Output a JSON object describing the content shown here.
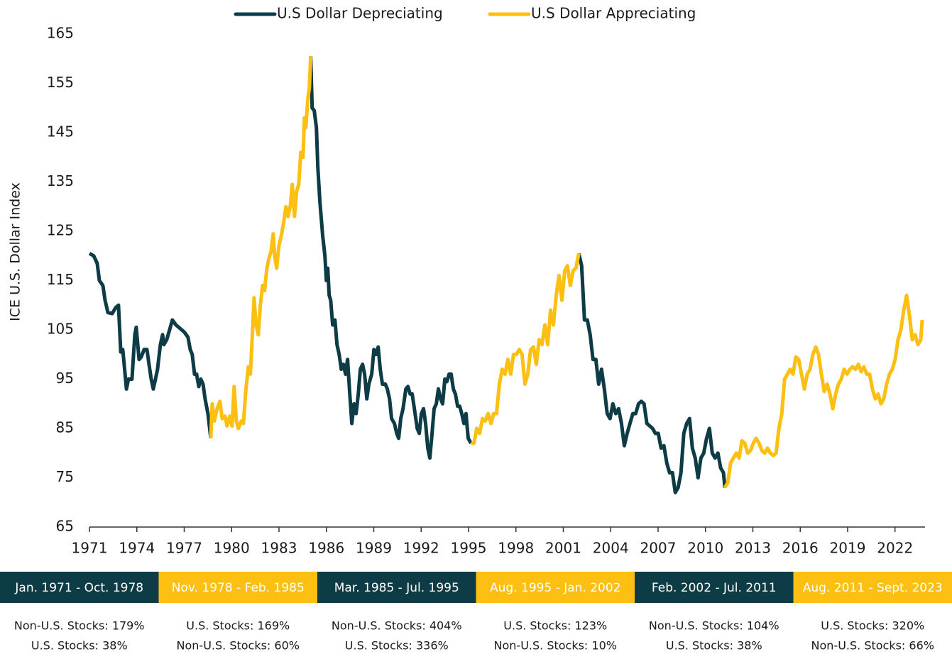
{
  "chart_data": {
    "type": "line",
    "y_label": "ICE U.S. Dollar Index",
    "xlim": [
      1971,
      2023.9
    ],
    "ylim": [
      65,
      165
    ],
    "xticks": [
      1971,
      1974,
      1977,
      1980,
      1983,
      1986,
      1989,
      1992,
      1995,
      1998,
      2001,
      2004,
      2007,
      2010,
      2013,
      2016,
      2019,
      2022
    ],
    "yticks": [
      65,
      75,
      85,
      95,
      105,
      115,
      125,
      135,
      145,
      155,
      165
    ],
    "legend": "top",
    "series": [
      {
        "name": "U.S Dollar Depreciating",
        "color": "#0d3b46",
        "x": [
          1971.0,
          1971.27,
          1971.49,
          1971.63,
          1971.85,
          1971.99,
          1972.17,
          1972.44,
          1972.66,
          1972.84,
          1972.98,
          1973.11,
          1973.2,
          1973.34,
          1973.47,
          1973.69,
          1973.87,
          1973.96,
          1974.14,
          1974.28,
          1974.46,
          1974.64,
          1974.77,
          1974.91,
          1975.04,
          1975.18,
          1975.31,
          1975.49,
          1975.63,
          1975.71,
          1975.89,
          1976.12,
          1976.25,
          1976.48,
          1976.66,
          1976.84,
          1977.02,
          1977.24,
          1977.38,
          1977.51,
          1977.65,
          1977.78,
          1977.92,
          1978.05,
          1978.19,
          1978.32,
          1978.5,
          1978.68,
          null,
          1985.01,
          1985.1,
          1985.23,
          1985.37,
          1985.46,
          1985.59,
          1985.77,
          1985.91,
          1986.0,
          1986.09,
          1986.18,
          1986.27,
          1986.4,
          1986.54,
          1986.67,
          1986.81,
          1986.94,
          1987.08,
          1987.21,
          1987.34,
          1987.48,
          1987.61,
          1987.75,
          1987.88,
          1988.02,
          1988.15,
          1988.29,
          1988.42,
          1988.56,
          1988.69,
          1988.87,
          1989.01,
          1989.14,
          1989.28,
          1989.41,
          1989.55,
          1989.73,
          1989.86,
          1990.0,
          1990.13,
          1990.31,
          1990.45,
          1990.58,
          1990.71,
          1990.85,
          1991.03,
          1991.16,
          1991.3,
          1991.43,
          1991.57,
          1991.75,
          1991.88,
          1992.01,
          1992.15,
          1992.28,
          1992.42,
          1992.55,
          1992.69,
          1992.82,
          1992.96,
          1993.09,
          1993.23,
          1993.36,
          1993.5,
          1993.63,
          1993.77,
          1993.9,
          1994.04,
          1994.17,
          1994.31,
          1994.44,
          1994.57,
          1994.71,
          1994.84,
          1994.98,
          1995.16,
          null,
          2001.98,
          2002.16,
          2002.34,
          2002.52,
          2002.7,
          2002.88,
          2003.06,
          2003.24,
          2003.42,
          2003.6,
          2003.78,
          2003.96,
          2004.14,
          2004.32,
          2004.5,
          2004.68,
          2004.86,
          2005.04,
          2005.22,
          2005.4,
          2005.58,
          2005.76,
          2005.94,
          2006.11,
          2006.29,
          2006.47,
          2006.65,
          2006.83,
          2007.01,
          2007.19,
          2007.37,
          2007.55,
          2007.73,
          2007.91,
          2008.09,
          2008.27,
          2008.45,
          2008.63,
          2008.81,
          2008.99,
          2009.17,
          2009.35,
          2009.53,
          2009.71,
          2009.89,
          2010.07,
          2010.25,
          2010.43,
          2010.61,
          2010.79,
          2010.96,
          2011.14,
          2011.23
        ],
        "values": [
          120.5,
          120,
          118.5,
          115,
          114,
          111,
          108.5,
          108.3,
          109.5,
          110,
          100.5,
          101,
          98,
          93,
          95,
          95,
          104,
          105.5,
          99,
          99.5,
          101,
          101,
          98,
          95,
          93,
          95,
          97,
          102,
          104,
          102,
          103,
          105.5,
          107,
          106,
          105.5,
          105,
          104.5,
          103.5,
          101,
          100,
          96,
          96,
          93.5,
          95,
          94,
          91,
          88,
          83,
          null,
          160.5,
          150,
          149.5,
          146,
          138,
          131,
          124,
          120,
          115,
          117.5,
          112,
          111,
          106,
          107,
          102,
          100,
          97,
          98,
          96,
          99,
          92,
          86,
          90,
          88,
          92,
          97,
          98,
          96,
          91,
          94,
          96,
          101,
          100,
          101.5,
          97,
          94,
          94,
          93,
          91,
          87,
          86,
          84,
          83,
          87,
          89,
          93,
          93.5,
          92,
          92,
          89,
          85,
          84,
          88,
          89,
          86,
          81,
          79,
          84,
          89,
          90,
          93,
          91,
          90,
          95,
          94.5,
          96,
          96,
          93,
          92,
          89.5,
          89.5,
          88,
          86,
          88,
          83,
          82,
          null,
          120.5,
          118,
          107,
          107,
          104,
          99,
          99,
          94,
          97,
          93,
          88,
          87,
          90,
          88,
          89,
          86,
          81.5,
          84,
          86,
          88,
          88,
          90,
          90.5,
          90,
          86,
          85.5,
          85,
          84,
          84,
          81,
          81.5,
          78,
          76,
          76,
          72,
          73,
          76,
          84,
          86,
          87,
          81,
          79,
          75,
          79,
          80,
          83,
          85,
          80,
          79,
          80,
          77,
          76,
          73
        ]
      },
      {
        "name": "U.S Dollar Appreciating",
        "color": "#fcbf12",
        "x": [
          1978.68,
          1978.77,
          1978.9,
          1979.08,
          1979.26,
          1979.4,
          1979.58,
          1979.71,
          1979.89,
          1980.03,
          1980.16,
          1980.3,
          1980.43,
          1980.61,
          1980.75,
          1980.88,
          1981.06,
          1981.19,
          1981.33,
          1981.42,
          1981.55,
          1981.69,
          1981.82,
          1981.96,
          1982.09,
          1982.23,
          1982.36,
          1982.5,
          1982.63,
          1982.72,
          1982.85,
          1982.99,
          1983.17,
          1983.3,
          1983.44,
          1983.57,
          1983.71,
          1983.84,
          1983.98,
          1984.11,
          1984.25,
          1984.38,
          1984.52,
          1984.61,
          1984.7,
          1984.83,
          1984.92,
          1985.01,
          null,
          1995.16,
          1995.34,
          1995.52,
          1995.7,
          1995.88,
          1996.06,
          1996.24,
          1996.42,
          1996.59,
          1996.77,
          1996.95,
          1997.13,
          1997.31,
          1997.49,
          1997.67,
          1997.85,
          1998.03,
          1998.21,
          1998.39,
          1998.57,
          1998.75,
          1998.93,
          1999.11,
          1999.29,
          1999.47,
          1999.65,
          1999.83,
          2000.01,
          2000.19,
          2000.37,
          2000.55,
          2000.73,
          2000.91,
          2001.09,
          2001.26,
          2001.44,
          2001.62,
          2001.8,
          2001.98,
          null,
          2011.23,
          2011.41,
          2011.59,
          2011.77,
          2011.95,
          2012.13,
          2012.31,
          2012.49,
          2012.67,
          2012.85,
          2013.03,
          2013.21,
          2013.39,
          2013.57,
          2013.75,
          2013.93,
          2014.11,
          2014.29,
          2014.47,
          2014.65,
          2014.83,
          2015.01,
          2015.19,
          2015.36,
          2015.54,
          2015.72,
          2015.9,
          2016.08,
          2016.26,
          2016.44,
          2016.62,
          2016.8,
          2016.98,
          2017.16,
          2017.34,
          2017.52,
          2017.7,
          2017.88,
          2018.06,
          2018.24,
          2018.42,
          2018.6,
          2018.78,
          2018.96,
          2019.14,
          2019.32,
          2019.5,
          2019.68,
          2019.86,
          2020.03,
          2020.21,
          2020.39,
          2020.57,
          2020.75,
          2020.93,
          2021.11,
          2021.29,
          2021.47,
          2021.65,
          2021.83,
          2022.01,
          2022.19,
          2022.37,
          2022.55,
          2022.73,
          2022.91,
          2023.09,
          2023.27,
          2023.45,
          2023.63,
          2023.72
        ],
        "values": [
          83,
          90,
          86.5,
          89,
          90.5,
          87,
          87.5,
          85.5,
          87.5,
          85.5,
          93.5,
          86.5,
          85,
          86.5,
          86,
          92,
          97.5,
          96,
          105,
          111.5,
          106,
          104,
          110,
          114,
          113,
          117.5,
          119.5,
          121,
          124.5,
          120,
          117.5,
          122,
          124.5,
          127,
          130,
          128,
          130,
          134.5,
          128,
          133,
          134.5,
          141,
          140,
          148,
          146,
          152,
          154,
          160.5,
          null,
          82,
          82,
          85,
          84,
          87,
          86.5,
          88,
          86,
          88,
          88,
          94,
          97,
          96,
          99,
          96,
          100,
          100,
          101,
          100,
          94,
          96,
          101,
          101.5,
          98,
          103,
          102,
          106,
          102,
          109,
          106,
          112,
          116,
          111,
          117,
          118,
          114,
          117,
          117.5,
          120.5,
          null,
          73,
          74,
          78,
          79,
          80,
          79,
          82.5,
          82,
          80,
          80.5,
          82,
          83,
          82,
          80.5,
          80,
          81,
          80,
          79.5,
          80,
          85,
          88,
          95,
          96,
          97,
          96,
          99.5,
          99,
          96,
          93,
          96,
          97,
          100,
          101.5,
          100,
          96,
          92.5,
          94,
          92,
          89,
          92,
          94,
          95,
          97,
          96,
          97,
          97.5,
          97,
          98,
          96.5,
          97.5,
          96,
          96,
          93,
          91,
          92,
          90,
          91,
          94,
          96,
          97,
          99,
          103,
          105,
          109,
          112,
          108,
          103,
          104,
          102,
          103,
          107
        ]
      }
    ]
  },
  "periods": [
    {
      "label": "Jan. 1971 - Oct. 1978",
      "color": "#0d3b46",
      "lines": [
        "Non-U.S. Stocks: 179%",
        "U.S. Stocks: 38%"
      ]
    },
    {
      "label": "Nov. 1978 - Feb. 1985",
      "color": "#fcbf12",
      "lines": [
        "U.S. Stocks: 169%",
        "Non-U.S. Stocks: 60%"
      ]
    },
    {
      "label": "Mar. 1985 - Jul. 1995",
      "color": "#0d3b46",
      "lines": [
        "Non-U.S. Stocks: 404%",
        "U.S. Stocks: 336%"
      ]
    },
    {
      "label": "Aug. 1995 - Jan. 2002",
      "color": "#fcbf12",
      "lines": [
        "U.S. Stocks: 123%",
        "Non-U.S. Stocks: 10%"
      ]
    },
    {
      "label": "Feb. 2002 - Jul. 2011",
      "color": "#0d3b46",
      "lines": [
        "Non-U.S. Stocks: 104%",
        "U.S. Stocks: 38%"
      ]
    },
    {
      "label": "Aug. 2011 - Sept. 2023",
      "color": "#fcbf12",
      "lines": [
        "U.S. Stocks: 320%",
        "Non-U.S. Stocks: 66%"
      ]
    }
  ]
}
